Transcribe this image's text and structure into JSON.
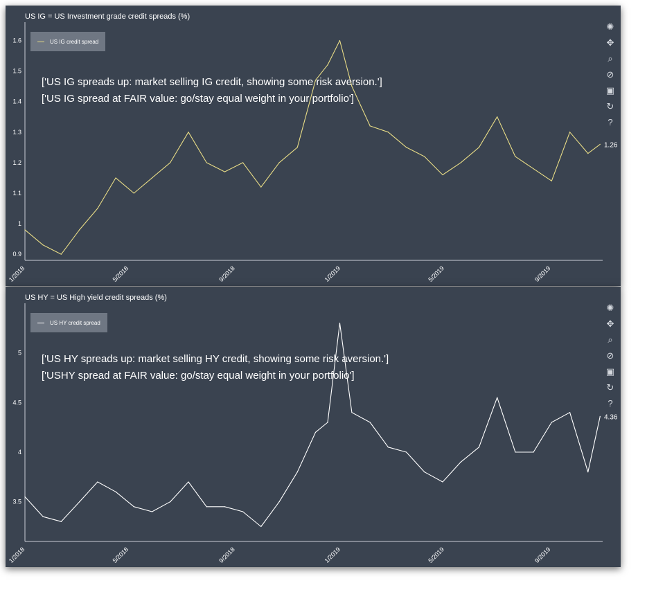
{
  "chart_data": [
    {
      "type": "line",
      "title": "US IG = US Investment grade credit spreads (%)",
      "legend": {
        "placement": "top-left",
        "entries": [
          "US IG credit spread"
        ]
      },
      "series": [
        {
          "name": "US IG credit spread",
          "color": "#e8dc86"
        }
      ],
      "x": [
        "2018-01-01",
        "2018-01-22",
        "2018-02-12",
        "2018-03-05",
        "2018-03-26",
        "2018-04-16",
        "2018-05-07",
        "2018-05-28",
        "2018-06-18",
        "2018-07-09",
        "2018-07-30",
        "2018-08-20",
        "2018-09-10",
        "2018-10-01",
        "2018-10-22",
        "2018-11-12",
        "2018-12-03",
        "2018-12-17",
        "2018-12-31",
        "2019-01-14",
        "2019-02-04",
        "2019-02-25",
        "2019-03-18",
        "2019-04-08",
        "2019-04-29",
        "2019-05-20",
        "2019-06-10",
        "2019-07-01",
        "2019-07-22",
        "2019-08-12",
        "2019-09-02",
        "2019-09-23",
        "2019-10-14",
        "2019-10-28"
      ],
      "values": [
        0.98,
        0.93,
        0.9,
        0.98,
        1.05,
        1.15,
        1.1,
        1.15,
        1.2,
        1.3,
        1.2,
        1.17,
        1.2,
        1.12,
        1.2,
        1.25,
        1.47,
        1.52,
        1.6,
        1.45,
        1.32,
        1.3,
        1.25,
        1.22,
        1.16,
        1.2,
        1.25,
        1.35,
        1.22,
        1.18,
        1.14,
        1.3,
        1.23,
        1.26
      ],
      "last_value_label": "1.26",
      "x_tick_labels": [
        "1/2018",
        "5/2018",
        "9/2018",
        "1/2019",
        "5/2019",
        "9/2019"
      ],
      "y_tick_labels": [
        "0.9",
        "1",
        "1.1",
        "1.2",
        "1.3",
        "1.4",
        "1.5",
        "1.6"
      ],
      "ylim": [
        0.88,
        1.66
      ],
      "xlim": [
        "2018-01-01",
        "2019-10-31"
      ],
      "grid": false,
      "annotations": [
        "['US IG spreads up: market selling IG credit, showing some risk aversion.']",
        "['US IG spread at FAIR value: go/stay equal weight in your portfolio']"
      ]
    },
    {
      "type": "line",
      "title": "US HY = US High yield credit spreads (%)",
      "legend": {
        "placement": "top-left",
        "entries": [
          "US HY credit spread"
        ]
      },
      "series": [
        {
          "name": "US HY credit spread",
          "color": "#ffffff"
        }
      ],
      "x": [
        "2018-01-01",
        "2018-01-22",
        "2018-02-12",
        "2018-03-05",
        "2018-03-26",
        "2018-04-16",
        "2018-05-07",
        "2018-05-28",
        "2018-06-18",
        "2018-07-09",
        "2018-07-30",
        "2018-08-20",
        "2018-09-10",
        "2018-10-01",
        "2018-10-22",
        "2018-11-12",
        "2018-12-03",
        "2018-12-17",
        "2018-12-31",
        "2019-01-14",
        "2019-02-04",
        "2019-02-25",
        "2019-03-18",
        "2019-04-08",
        "2019-04-29",
        "2019-05-20",
        "2019-06-10",
        "2019-07-01",
        "2019-07-22",
        "2019-08-12",
        "2019-09-02",
        "2019-09-23",
        "2019-10-14",
        "2019-10-28"
      ],
      "values": [
        3.55,
        3.35,
        3.3,
        3.5,
        3.7,
        3.6,
        3.45,
        3.4,
        3.5,
        3.7,
        3.45,
        3.45,
        3.4,
        3.25,
        3.5,
        3.8,
        4.2,
        4.3,
        5.3,
        4.4,
        4.3,
        4.05,
        4.0,
        3.8,
        3.7,
        3.9,
        4.05,
        4.55,
        4.0,
        4.0,
        4.3,
        4.4,
        3.8,
        4.36
      ],
      "last_value_label": "4.36",
      "x_tick_labels": [
        "1/2018",
        "5/2018",
        "9/2018",
        "1/2019",
        "5/2019",
        "9/2019"
      ],
      "y_tick_labels": [
        "3.5",
        "4",
        "4.5",
        "5"
      ],
      "ylim": [
        3.1,
        5.5
      ],
      "xlim": [
        "2018-01-01",
        "2019-10-31"
      ],
      "grid": false,
      "annotations": [
        "['US HY spreads up: market selling HY credit, showing some risk aversion.']",
        "['USHY spread at FAIR value: go/stay equal weight in your portfolio']"
      ]
    }
  ],
  "toolbar_icons": [
    "logo-icon",
    "move-icon",
    "zoom-icon",
    "reset-axes-icon",
    "save-icon",
    "refresh-icon",
    "help-icon"
  ]
}
